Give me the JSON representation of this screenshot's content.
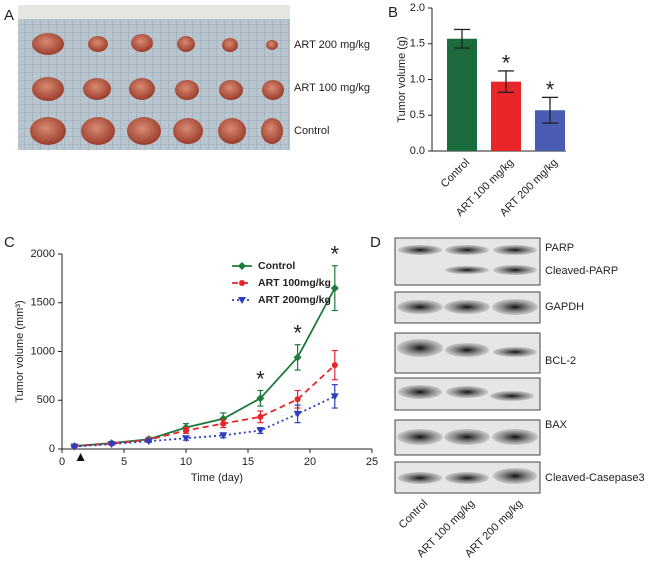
{
  "panel_a": {
    "panel_label": "A",
    "labels": [
      "ART 200 mg/kg",
      "ART 100 mg/kg",
      "Control"
    ]
  },
  "chart_data": [
    {
      "type": "bar",
      "panel_label": "B",
      "y_label": "Tumor volume (g)",
      "categories": [
        "Control",
        "ART 100 mg/kg",
        "ART 200 mg/kg"
      ],
      "values": [
        1.57,
        0.97,
        0.57
      ],
      "errors": [
        0.13,
        0.15,
        0.18
      ],
      "colors": [
        "#1b6b3e",
        "#e8262a",
        "#4a5cb4"
      ],
      "value_annotations": [
        null,
        "*",
        "*"
      ],
      "ylim": [
        0,
        2.0
      ],
      "yticks": [
        {
          "value": 0,
          "label": "0.0"
        },
        {
          "value": 0.5,
          "label": "0.5"
        },
        {
          "value": 1.0,
          "label": "1.0"
        },
        {
          "value": 1.5,
          "label": "1.5"
        },
        {
          "value": 2.0,
          "label": "2.0"
        }
      ]
    },
    {
      "type": "line",
      "panel_label": "C",
      "x_label": "Time (day)",
      "y_label": "Tumor volume (mm³)",
      "x": [
        1,
        4,
        7,
        10,
        13,
        16,
        19,
        22
      ],
      "series": [
        {
          "name": "Control",
          "color": "#1e7a3a",
          "dash": "solid",
          "marker": "diamond",
          "values": [
            30,
            60,
            100,
            220,
            310,
            520,
            940,
            1650
          ],
          "errors": [
            10,
            15,
            20,
            40,
            60,
            80,
            130,
            230
          ],
          "value_annotations": [
            null,
            null,
            null,
            null,
            null,
            "*",
            "*",
            "*"
          ]
        },
        {
          "name": "ART 100mg/kg",
          "color": "#e8262a",
          "dash": "dashed",
          "marker": "circle",
          "values": [
            30,
            55,
            95,
            190,
            260,
            330,
            510,
            860
          ],
          "errors": [
            10,
            12,
            15,
            30,
            40,
            60,
            90,
            150
          ]
        },
        {
          "name": "ART 200mg/kg",
          "color": "#2b3fbf",
          "dash": "dotted",
          "marker": "triangle",
          "values": [
            25,
            50,
            80,
            110,
            140,
            190,
            360,
            540
          ],
          "errors": [
            8,
            10,
            12,
            20,
            25,
            30,
            90,
            120
          ]
        }
      ],
      "arrow_x": 1.5,
      "xlim": [
        0,
        25
      ],
      "xticks": [
        0,
        5,
        10,
        15,
        20,
        25
      ],
      "ylim": [
        0,
        2000
      ],
      "yticks": [
        0,
        500,
        1000,
        1500,
        2000
      ]
    }
  ],
  "panel_d": {
    "panel_label": "D",
    "bands": [
      "PARP",
      "Cleaved-PARP",
      "GAPDH",
      "BCL-2",
      "BAX",
      "Cleaved-Casepase3"
    ],
    "lanes": [
      "Control",
      "ART 100 mg/kg",
      "ART 200 mg/kg"
    ]
  }
}
